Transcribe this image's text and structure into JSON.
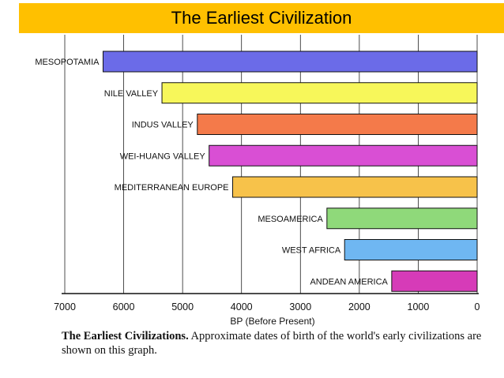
{
  "header": {
    "title": "The Earliest Civilization",
    "bg_color": "#FFC000"
  },
  "chart_data": {
    "type": "bar",
    "orientation": "horizontal",
    "title": "The Earliest Civilization",
    "xlabel": "BP (Before Present)",
    "ylabel": "",
    "xlim": [
      7000,
      0
    ],
    "x_ticks": [
      7000,
      6000,
      5000,
      4000,
      3000,
      2000,
      1000,
      0
    ],
    "grid": true,
    "categories": [
      "MESOPOTAMIA",
      "NILE VALLEY",
      "INDUS VALLEY",
      "WEI-HUANG VALLEY",
      "MEDITERRANEAN EUROPE",
      "MESOAMERICA",
      "WEST AFRICA",
      "ANDEAN AMERICA"
    ],
    "values": [
      6350,
      5350,
      4750,
      4550,
      4150,
      2550,
      2250,
      1450
    ],
    "colors": [
      "#6B6BE8",
      "#F7F75A",
      "#F47A4A",
      "#D94FD4",
      "#F7C24A",
      "#8FD97A",
      "#6FB7F2",
      "#D63BB8"
    ]
  },
  "caption": {
    "bold": "The Earliest Civilizations.",
    "text": " Approximate dates of birth of the world's early civilizations are shown on this graph."
  }
}
